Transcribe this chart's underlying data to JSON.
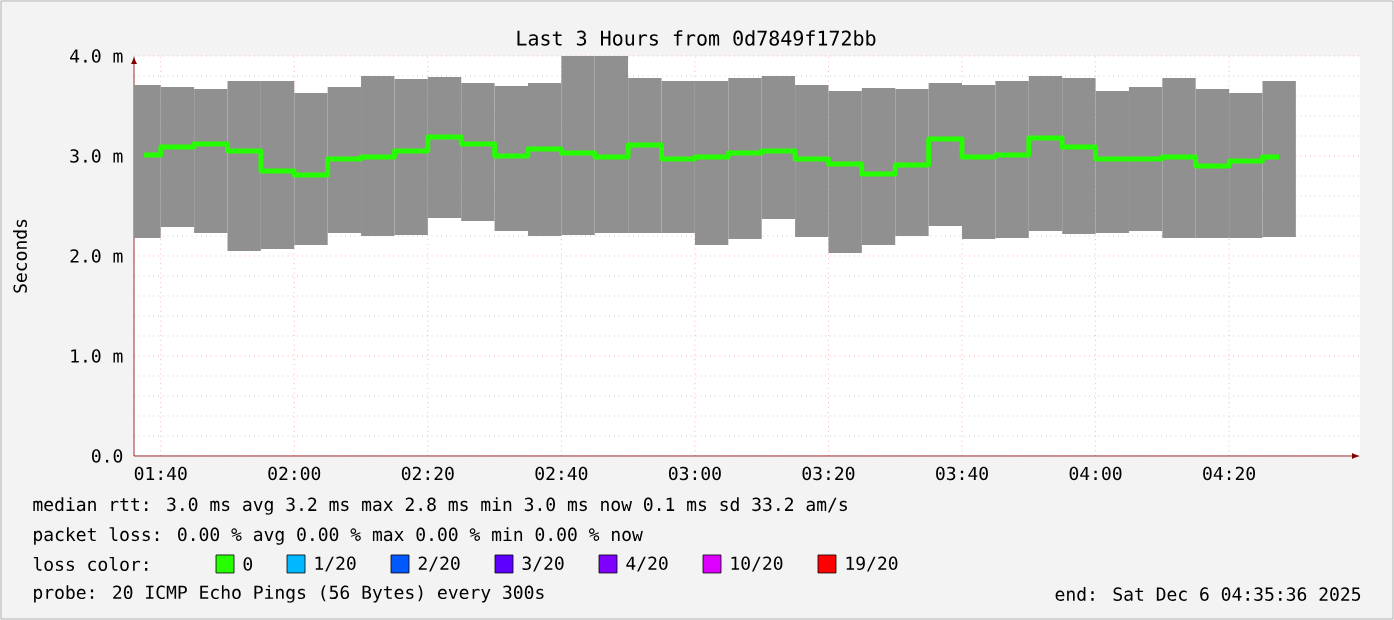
{
  "chart_data": {
    "type": "bar",
    "title": "Last 3 Hours from 0d7849f172bb",
    "ylabel": "Seconds",
    "x": [
      1.625,
      1.7083,
      1.7917,
      1.875,
      1.9583,
      2.0417,
      2.125,
      2.2083,
      2.2917,
      2.375,
      2.4583,
      2.5417,
      2.625,
      2.7083,
      2.7917,
      2.875,
      2.9583,
      3.0417,
      3.125,
      3.2083,
      3.2917,
      3.375,
      3.4583,
      3.5417,
      3.625,
      3.7083,
      3.7917,
      3.875,
      3.9583,
      4.0417,
      4.125,
      4.2083,
      4.2917,
      4.375,
      4.4583
    ],
    "xlim": [
      1.6,
      4.66
    ],
    "xticks": [
      {
        "value": 1.6667,
        "label": "01:40"
      },
      {
        "value": 2,
        "label": "02:00"
      },
      {
        "value": 2.3333,
        "label": "02:20"
      },
      {
        "value": 2.6667,
        "label": "02:40"
      },
      {
        "value": 3,
        "label": "03:00"
      },
      {
        "value": 3.3333,
        "label": "03:20"
      },
      {
        "value": 3.6667,
        "label": "03:40"
      },
      {
        "value": 4,
        "label": "04:00"
      },
      {
        "value": 4.3333,
        "label": "04:20"
      }
    ],
    "ylim": [
      0,
      4
    ],
    "yticks": [
      {
        "value": 0,
        "label": "0.0"
      },
      {
        "value": 1,
        "label": "1.0 m"
      },
      {
        "value": 2,
        "label": "2.0 m"
      },
      {
        "value": 3,
        "label": "3.0 m"
      },
      {
        "value": 4,
        "label": "4.0 m"
      }
    ],
    "grid": true,
    "legend": "bottom",
    "legend_title": "loss color:",
    "series": [
      {
        "color": "#909090",
        "base": [
          2.18,
          2.29,
          2.23,
          2.05,
          2.07,
          2.11,
          2.23,
          2.2,
          2.21,
          2.38,
          2.35,
          2.25,
          2.2,
          2.21,
          2.23,
          2.23,
          2.23,
          2.11,
          2.17,
          2.37,
          2.19,
          2.03,
          2.11,
          2.2,
          2.3,
          2.17,
          2.18,
          2.25,
          2.22,
          2.23,
          2.25,
          2.18,
          2.18,
          2.18,
          2.19
        ],
        "values": [
          1.53,
          1.4,
          1.44,
          1.7,
          1.68,
          1.52,
          1.46,
          1.6,
          1.56,
          1.41,
          1.38,
          1.45,
          1.53,
          1.79,
          1.77,
          1.55,
          1.52,
          1.64,
          1.61,
          1.43,
          1.52,
          1.62,
          1.57,
          1.47,
          1.43,
          1.54,
          1.57,
          1.55,
          1.56,
          1.42,
          1.44,
          1.6,
          1.49,
          1.45,
          1.56
        ]
      },
      {
        "type": "step",
        "name": "0",
        "color": "#26ff00",
        "values": [
          3.01,
          3.09,
          3.12,
          3.05,
          2.85,
          2.81,
          2.97,
          2.99,
          3.05,
          3.19,
          3.12,
          3.0,
          3.07,
          3.03,
          2.99,
          3.11,
          2.97,
          2.99,
          3.03,
          3.05,
          2.97,
          2.92,
          2.82,
          2.91,
          3.17,
          2.99,
          3.01,
          3.18,
          3.09,
          2.97,
          2.97,
          2.99,
          2.9,
          2.95,
          2.99
        ]
      },
      {
        "type": "step",
        "name": "1/20",
        "color": "#00b8ff",
        "values": [
          null,
          null,
          null,
          null,
          null,
          null,
          null,
          null,
          null,
          null,
          null,
          null,
          null,
          null,
          null,
          null,
          null,
          null,
          null,
          null,
          null,
          null,
          null,
          null,
          null,
          null,
          null,
          null,
          null,
          null,
          null,
          null,
          null,
          null,
          null
        ]
      },
      {
        "type": "step",
        "name": "2/20",
        "color": "#0059ff",
        "values": [
          null,
          null,
          null,
          null,
          null,
          null,
          null,
          null,
          null,
          null,
          null,
          null,
          null,
          null,
          null,
          null,
          null,
          null,
          null,
          null,
          null,
          null,
          null,
          null,
          null,
          null,
          null,
          null,
          null,
          null,
          null,
          null,
          null,
          null,
          null
        ]
      },
      {
        "type": "step",
        "name": "3/20",
        "color": "#5e00ff",
        "values": [
          null,
          null,
          null,
          null,
          null,
          null,
          null,
          null,
          null,
          null,
          null,
          null,
          null,
          null,
          null,
          null,
          null,
          null,
          null,
          null,
          null,
          null,
          null,
          null,
          null,
          null,
          null,
          null,
          null,
          null,
          null,
          null,
          null,
          null,
          null
        ]
      },
      {
        "type": "step",
        "name": "4/20",
        "color": "#7e00ff",
        "values": [
          null,
          null,
          null,
          null,
          null,
          null,
          null,
          null,
          null,
          null,
          null,
          null,
          null,
          null,
          null,
          null,
          null,
          null,
          null,
          null,
          null,
          null,
          null,
          null,
          null,
          null,
          null,
          null,
          null,
          null,
          null,
          null,
          null,
          null,
          null
        ]
      },
      {
        "type": "step",
        "name": "10/20",
        "color": "#dd00ff",
        "values": [
          null,
          null,
          null,
          null,
          null,
          null,
          null,
          null,
          null,
          null,
          null,
          null,
          null,
          null,
          null,
          null,
          null,
          null,
          null,
          null,
          null,
          null,
          null,
          null,
          null,
          null,
          null,
          null,
          null,
          null,
          null,
          null,
          null,
          null,
          null
        ]
      },
      {
        "type": "step",
        "name": "19/20",
        "color": "#ff0000",
        "values": [
          null,
          null,
          null,
          null,
          null,
          null,
          null,
          null,
          null,
          null,
          null,
          null,
          null,
          null,
          null,
          null,
          null,
          null,
          null,
          null,
          null,
          null,
          null,
          null,
          null,
          null,
          null,
          null,
          null,
          null,
          null,
          null,
          null,
          null,
          null
        ]
      }
    ],
    "annotations": [
      "median rtt:  3.0 ms avg  3.2 ms max  2.8 ms min  3.0 ms now  0.1 ms sd  33.2   am/s",
      "packet loss: 0.00 % avg  0.00 % max  0.00 % min  0.00 % now",
      "probe:       20 ICMP Echo Pings (56 Bytes) every 300s",
      "end: Sat Dec  6 04:35:36 2025"
    ]
  }
}
